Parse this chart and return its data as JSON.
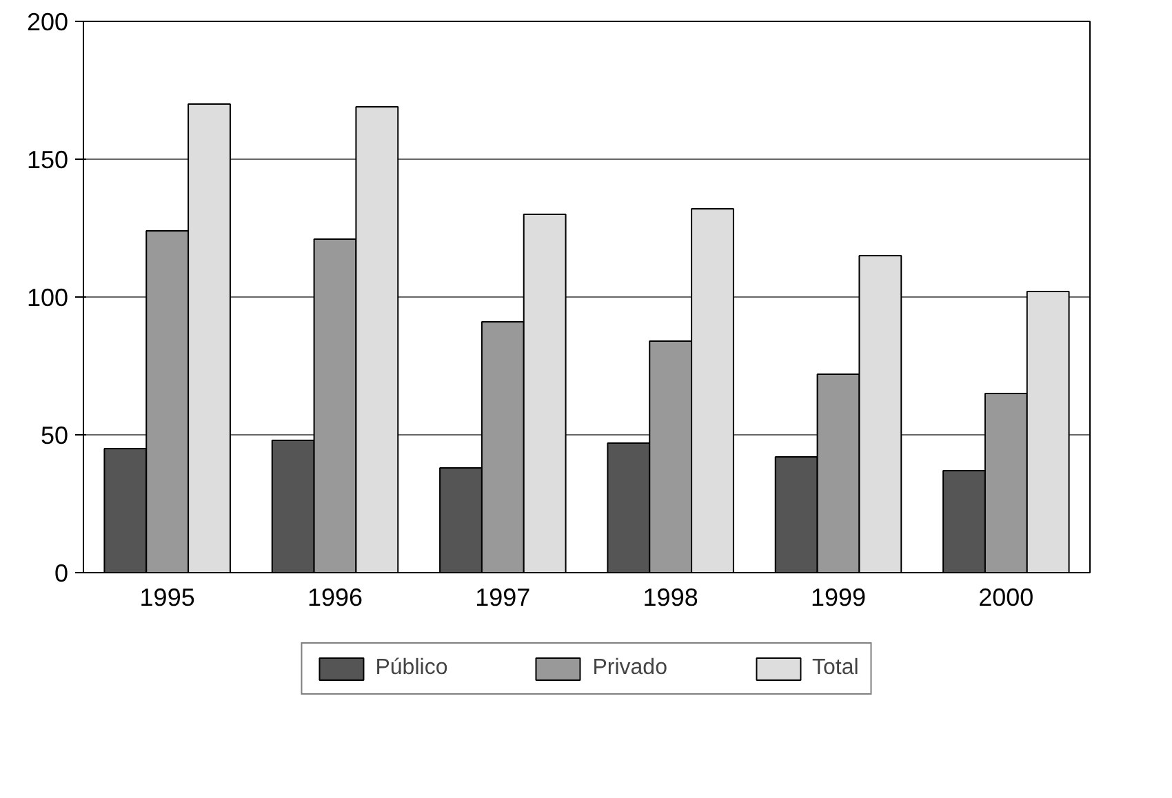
{
  "chart_data": {
    "type": "bar",
    "categories": [
      "1995",
      "1996",
      "1997",
      "1998",
      "1999",
      "2000"
    ],
    "series": [
      {
        "name": "Público",
        "color": "#555555",
        "values": [
          45,
          48,
          38,
          47,
          42,
          37
        ]
      },
      {
        "name": "Privado",
        "color": "#999999",
        "values": [
          124,
          121,
          91,
          84,
          72,
          65
        ]
      },
      {
        "name": "Total",
        "color": "#dddddd",
        "values": [
          170,
          169,
          130,
          132,
          115,
          102
        ]
      }
    ],
    "ylim": [
      0,
      200
    ],
    "yticks": [
      0,
      50,
      100,
      150,
      200
    ],
    "grid": "y",
    "legend": "bottom"
  }
}
